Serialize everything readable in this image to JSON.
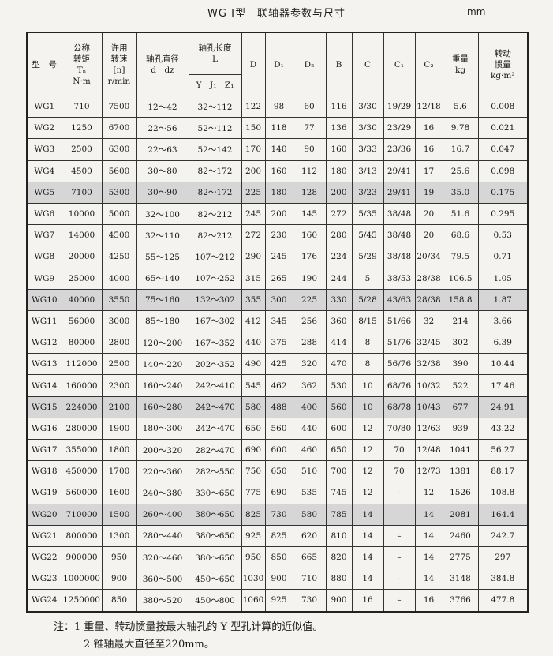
{
  "header": {
    "title": "WG I型　联轴器参数与尺寸",
    "unit": "mm"
  },
  "table": {
    "columns": [
      [
        "型　号"
      ],
      [
        "公称",
        "转矩",
        "Tₙ",
        "N·m"
      ],
      [
        "许用",
        "转速",
        "[n]",
        "r/min"
      ],
      [
        "轴孔直径",
        "d　dz"
      ],
      [
        "轴孔长度",
        "L"
      ],
      [
        "D"
      ],
      [
        "D₁"
      ],
      [
        "D₂"
      ],
      [
        "B"
      ],
      [
        "C"
      ],
      [
        "C₁"
      ],
      [
        "C₂"
      ],
      [
        "重量",
        "kg"
      ],
      [
        "转动",
        "惯量",
        "kg·m²"
      ]
    ],
    "subheader": "Y　J₁　Z₁",
    "rows": [
      [
        "WG1",
        "710",
        "7500",
        "12～42",
        "32～112",
        "122",
        "98",
        "60",
        "116",
        "3/30",
        "19/29",
        "12/18",
        "5.6",
        "0.008"
      ],
      [
        "WG2",
        "1250",
        "6700",
        "22～56",
        "52～112",
        "150",
        "118",
        "77",
        "136",
        "3/30",
        "23/29",
        "16",
        "9.78",
        "0.021"
      ],
      [
        "WG3",
        "2500",
        "6300",
        "22～63",
        "52～142",
        "170",
        "140",
        "90",
        "160",
        "3/33",
        "23/36",
        "16",
        "16.7",
        "0.047"
      ],
      [
        "WG4",
        "4500",
        "5600",
        "30～80",
        "82～172",
        "200",
        "160",
        "112",
        "180",
        "3/13",
        "29/41",
        "17",
        "25.6",
        "0.098"
      ],
      [
        "WG5",
        "7100",
        "5300",
        "30～90",
        "82～172",
        "225",
        "180",
        "128",
        "200",
        "3/23",
        "29/41",
        "19",
        "35.0",
        "0.175"
      ],
      [
        "WG6",
        "10000",
        "5000",
        "32～100",
        "82～212",
        "245",
        "200",
        "145",
        "272",
        "5/35",
        "38/48",
        "20",
        "51.6",
        "0.295"
      ],
      [
        "WG7",
        "14000",
        "4500",
        "32～110",
        "82～212",
        "272",
        "230",
        "160",
        "280",
        "5/45",
        "38/48",
        "20",
        "68.6",
        "0.53"
      ],
      [
        "WG8",
        "20000",
        "4250",
        "55～125",
        "107～212",
        "290",
        "245",
        "176",
        "224",
        "5/29",
        "38/48",
        "20/34",
        "79.5",
        "0.71"
      ],
      [
        "WG9",
        "25000",
        "4000",
        "65～140",
        "107～252",
        "315",
        "265",
        "190",
        "244",
        "5",
        "38/53",
        "28/38",
        "106.5",
        "1.05"
      ],
      [
        "WG10",
        "40000",
        "3550",
        "75～160",
        "132～302",
        "355",
        "300",
        "225",
        "330",
        "5/28",
        "43/63",
        "28/38",
        "158.8",
        "1.87"
      ],
      [
        "WG11",
        "56000",
        "3000",
        "85～180",
        "167～302",
        "412",
        "345",
        "256",
        "360",
        "8/15",
        "51/66",
        "32",
        "214",
        "3.66"
      ],
      [
        "WG12",
        "80000",
        "2800",
        "120～200",
        "167～352",
        "440",
        "375",
        "288",
        "414",
        "8",
        "51/76",
        "32/45",
        "302",
        "6.39"
      ],
      [
        "WG13",
        "112000",
        "2500",
        "140～220",
        "202～352",
        "490",
        "425",
        "320",
        "470",
        "8",
        "56/76",
        "32/38",
        "390",
        "10.44"
      ],
      [
        "WG14",
        "160000",
        "2300",
        "160～240",
        "242～410",
        "545",
        "462",
        "362",
        "530",
        "10",
        "68/76",
        "10/32",
        "522",
        "17.46"
      ],
      [
        "WG15",
        "224000",
        "2100",
        "160～280",
        "242～470",
        "580",
        "488",
        "400",
        "560",
        "10",
        "68/78",
        "10/43",
        "677",
        "24.91"
      ],
      [
        "WG16",
        "280000",
        "1900",
        "180～300",
        "242～470",
        "650",
        "560",
        "440",
        "600",
        "12",
        "70/80",
        "12/63",
        "939",
        "43.22"
      ],
      [
        "WG17",
        "355000",
        "1800",
        "200～320",
        "282～470",
        "690",
        "600",
        "460",
        "650",
        "12",
        "70",
        "12/48",
        "1041",
        "56.27"
      ],
      [
        "WG18",
        "450000",
        "1700",
        "220～360",
        "282～550",
        "750",
        "650",
        "510",
        "700",
        "12",
        "70",
        "12/73",
        "1381",
        "88.17"
      ],
      [
        "WG19",
        "560000",
        "1600",
        "240～380",
        "330～650",
        "775",
        "690",
        "535",
        "745",
        "12",
        "–",
        "12",
        "1526",
        "108.8"
      ],
      [
        "WG20",
        "710000",
        "1500",
        "260～400",
        "380～650",
        "825",
        "730",
        "580",
        "785",
        "14",
        "–",
        "14",
        "2081",
        "164.4"
      ],
      [
        "WG21",
        "800000",
        "1300",
        "280～440",
        "380～650",
        "925",
        "825",
        "620",
        "810",
        "14",
        "–",
        "14",
        "2460",
        "242.7"
      ],
      [
        "WG22",
        "900000",
        "950",
        "320～460",
        "380～650",
        "950",
        "850",
        "665",
        "820",
        "14",
        "–",
        "14",
        "2775",
        "297"
      ],
      [
        "WG23",
        "1000000",
        "900",
        "360～500",
        "450～650",
        "1030",
        "900",
        "710",
        "880",
        "14",
        "–",
        "14",
        "3148",
        "384.8"
      ],
      [
        "WG24",
        "1250000",
        "850",
        "380～520",
        "450～800",
        "1060",
        "925",
        "730",
        "900",
        "16",
        "–",
        "16",
        "3766",
        "477.8"
      ]
    ]
  },
  "notes": [
    "注：1 重量、转动惯量按最大轴孔的 Y 型孔计算的近似值。",
    "2 锥轴最大直径至220mm。"
  ]
}
